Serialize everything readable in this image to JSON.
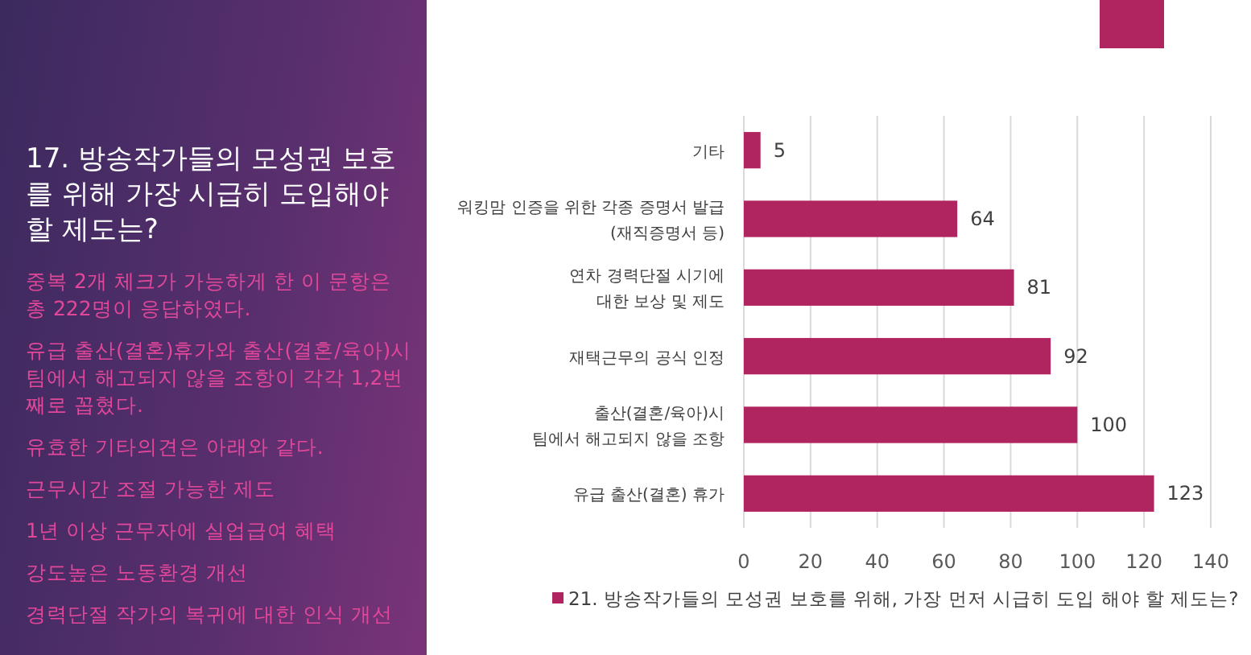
{
  "chart_data": {
    "type": "bar",
    "orientation": "horizontal",
    "title": "17. 방송작가들의 모성권 보호를 위해 가장 시급히 도입해야 할 제도는?",
    "annotations": [
      "중복 2개 체크가 가능하게 한 이 문항은 총 222명이 응답하였다.",
      "유급 출산(결혼)휴가와 출산(결혼/육아)시 팀에서 해고되지 않을 조항이 각각 1,2번째로 꼽혔다.",
      "유효한 기타의견은 아래와 같다.",
      "근무시간 조절 가능한 제도",
      "1년 이상 근무자에 실업급여 혜택",
      "강도높은 노동환경 개선",
      "경력단절 작가의 복귀에 대한 인식 개선"
    ],
    "categories": [
      "기타",
      "워킹맘 인증을 위한 각종 증명서 발급\n(재직증명서 등)",
      "연차 경력단절 시기에\n대한 보상 및 제도",
      "재택근무의 공식 인정",
      "출산(결혼/육아)시\n팀에서 해고되지 않을 조항",
      "유급 출산(결혼) 휴가"
    ],
    "series": [
      {
        "name": "21. 방송작가들의 모성권 보호를 위해, 가장 먼저 시급히 도입 해야 할 제도는?",
        "color": "#b0245f",
        "values": [
          5,
          64,
          81,
          92,
          100,
          123
        ]
      }
    ],
    "xlim": [
      0,
      140
    ],
    "xticks": [
      0,
      20,
      40,
      60,
      80,
      100,
      120,
      140
    ],
    "grid": "x",
    "data_labels": true,
    "legend": "bottom"
  }
}
